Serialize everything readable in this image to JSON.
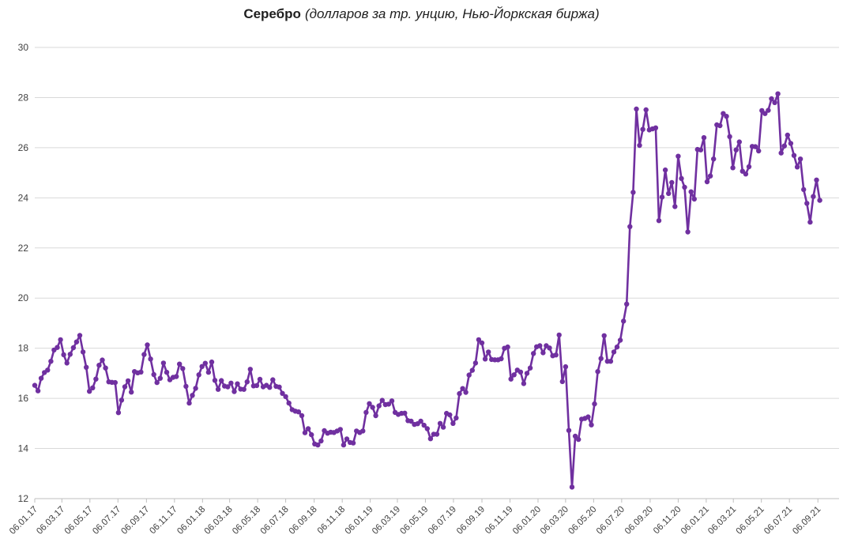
{
  "title": {
    "main": "Серебро",
    "subtitle": "(долларов за тр. унцию, Нью-Йоркская биржа)"
  },
  "chart_data": {
    "type": "line",
    "series_name": "Серебро, долларов за тройскую унцию",
    "frequency": "weekly",
    "start_date": "06.01.2017",
    "end_date": "10.09.2021",
    "ylim": [
      12,
      30
    ],
    "y_step": 2,
    "y_tick_labels": [
      "12",
      "14",
      "16",
      "18",
      "20",
      "22",
      "24",
      "26",
      "28",
      "30"
    ],
    "x_tick_labels": [
      "06.01.17",
      "06.03.17",
      "06.05.17",
      "06.07.17",
      "06.09.17",
      "06.11.17",
      "06.01.18",
      "06.03.18",
      "06.05.18",
      "06.07.18",
      "06.09.18",
      "06.11.18",
      "06.01.19",
      "06.03.19",
      "06.05.19",
      "06.07.19",
      "06.09.19",
      "06.11.19",
      "06.01.20",
      "06.03.20",
      "06.05.20",
      "06.07.20",
      "06.09.20",
      "06.11.20",
      "06.01.21",
      "06.03.21",
      "06.05.21",
      "06.07.21",
      "06.09.21"
    ],
    "grid": "horizontal",
    "legend": "none",
    "marker": "circle",
    "line_color": "#7030A0",
    "gridline_color": "#D9D9D9",
    "axis_color": "#BFBFBF",
    "label_color": "#404040",
    "title_color": "#1F1F1F",
    "values": [
      16.52,
      16.3,
      16.8,
      17.03,
      17.13,
      17.48,
      17.93,
      18.03,
      18.34,
      17.74,
      17.41,
      17.76,
      18.02,
      18.25,
      18.51,
      17.85,
      17.24,
      16.28,
      16.42,
      16.77,
      17.32,
      17.53,
      17.21,
      16.66,
      16.64,
      16.63,
      15.43,
      15.93,
      16.46,
      16.7,
      16.25,
      17.07,
      17.02,
      17.05,
      17.75,
      18.13,
      17.57,
      16.95,
      16.63,
      16.8,
      17.41,
      17.04,
      16.74,
      16.84,
      16.87,
      17.37,
      17.19,
      16.48,
      15.81,
      16.12,
      16.4,
      16.94,
      17.27,
      17.4,
      17.04,
      17.45,
      16.72,
      16.36,
      16.71,
      16.49,
      16.46,
      16.61,
      16.27,
      16.58,
      16.37,
      16.36,
      16.66,
      17.16,
      16.5,
      16.51,
      16.76,
      16.46,
      16.52,
      16.44,
      16.74,
      16.48,
      16.45,
      16.2,
      16.07,
      15.81,
      15.55,
      15.49,
      15.46,
      15.31,
      14.63,
      14.79,
      14.55,
      14.18,
      14.14,
      14.3,
      14.71,
      14.61,
      14.65,
      14.64,
      14.7,
      14.76,
      14.14,
      14.38,
      14.24,
      14.22,
      14.7,
      14.64,
      14.7,
      15.44,
      15.79,
      15.64,
      15.31,
      15.7,
      15.92,
      15.75,
      15.77,
      15.9,
      15.44,
      15.36,
      15.4,
      15.41,
      15.11,
      15.09,
      14.96,
      14.99,
      15.09,
      14.93,
      14.79,
      14.39,
      14.57,
      14.57,
      15.0,
      14.85,
      15.4,
      15.34,
      15.0,
      15.22,
      16.19,
      16.39,
      16.24,
      16.93,
      17.12,
      17.41,
      18.34,
      18.21,
      17.57,
      17.85,
      17.55,
      17.54,
      17.54,
      17.58,
      18.0,
      18.05,
      16.77,
      16.94,
      17.13,
      17.05,
      16.59,
      17.0,
      17.21,
      17.79,
      18.06,
      18.1,
      17.82,
      18.1,
      18.01,
      17.7,
      17.73,
      18.53,
      16.67,
      17.26,
      14.72,
      12.46,
      14.49,
      14.36,
      15.17,
      15.2,
      15.26,
      14.94,
      15.78,
      17.07,
      17.59,
      18.5,
      17.48,
      17.48,
      17.85,
      18.05,
      18.32,
      19.08,
      19.76,
      22.85,
      24.22,
      27.54,
      26.09,
      26.73,
      27.51,
      26.71,
      26.75,
      26.79,
      23.09,
      24.03,
      25.11,
      24.17,
      24.61,
      23.65,
      25.66,
      24.77,
      24.42,
      22.64,
      24.24,
      23.95,
      25.93,
      25.91,
      26.4,
      24.64,
      24.87,
      25.55,
      26.91,
      26.88,
      27.36,
      27.25,
      26.44,
      25.2,
      25.91,
      26.23,
      25.06,
      24.95,
      25.24,
      26.05,
      26.04,
      25.87,
      27.48,
      27.36,
      27.49,
      27.95,
      27.8,
      28.15,
      25.79,
      26.07,
      26.5,
      26.17,
      25.69,
      25.23,
      25.55,
      24.33,
      23.78,
      23.03,
      24.05,
      24.71,
      23.9
    ]
  }
}
